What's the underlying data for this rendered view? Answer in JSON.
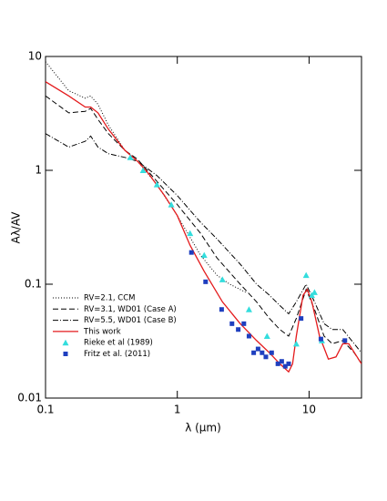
{
  "chart_data": {
    "type": "line",
    "xlabel": "λ (μm)",
    "ylabel": "Aλ/AV",
    "xscale": "log",
    "yscale": "log",
    "xlim": [
      0.1,
      25
    ],
    "ylim": [
      0.01,
      10
    ],
    "xticks": [
      0.1,
      1,
      10
    ],
    "yticks": [
      0.01,
      0.1,
      1,
      10
    ],
    "legend": "lower left",
    "series": [
      {
        "name": "RV=2.1, CCM",
        "color": "#000000",
        "style": "dotted",
        "x": [
          0.1,
          0.15,
          0.2,
          0.22,
          0.25,
          0.3,
          0.4,
          0.5,
          0.7,
          1,
          1.5,
          2,
          2.5,
          3.3
        ],
        "values": [
          9,
          5,
          4.3,
          4.5,
          3.8,
          2.5,
          1.5,
          1.2,
          0.75,
          0.4,
          0.18,
          0.12,
          0.1,
          0.085
        ]
      },
      {
        "name": "RV=3.1, WD01 (Case A)",
        "color": "#000000",
        "style": "dashed",
        "x": [
          0.1,
          0.15,
          0.2,
          0.22,
          0.25,
          0.3,
          0.4,
          0.5,
          0.7,
          1,
          1.5,
          2,
          3,
          4,
          5,
          6,
          7,
          8,
          9.5,
          11,
          13,
          15,
          18,
          22,
          25
        ],
        "values": [
          4.5,
          3.2,
          3.3,
          3.5,
          2.8,
          2.1,
          1.5,
          1.25,
          0.8,
          0.5,
          0.28,
          0.17,
          0.1,
          0.07,
          0.05,
          0.04,
          0.035,
          0.05,
          0.09,
          0.06,
          0.035,
          0.03,
          0.032,
          0.025,
          0.02
        ]
      },
      {
        "name": "RV=5.5, WD01 (Case B)",
        "color": "#000000",
        "style": "dashdot",
        "x": [
          0.1,
          0.15,
          0.2,
          0.22,
          0.25,
          0.3,
          0.4,
          0.5,
          0.7,
          1,
          1.5,
          2,
          3,
          4,
          5,
          6,
          7,
          8,
          9.5,
          11,
          13,
          15,
          18,
          22,
          25
        ],
        "values": [
          2.1,
          1.6,
          1.8,
          2.0,
          1.6,
          1.4,
          1.3,
          1.2,
          0.9,
          0.6,
          0.35,
          0.25,
          0.15,
          0.1,
          0.08,
          0.065,
          0.055,
          0.07,
          0.1,
          0.07,
          0.045,
          0.04,
          0.04,
          0.03,
          0.025
        ]
      },
      {
        "name": "This work",
        "color": "#e41a1c",
        "style": "solid",
        "x": [
          0.1,
          0.15,
          0.2,
          0.22,
          0.25,
          0.3,
          0.4,
          0.5,
          0.6,
          0.8,
          1,
          1.25,
          1.6,
          2.2,
          3,
          4,
          5,
          6,
          7,
          7.5,
          8,
          9,
          9.7,
          10.5,
          12,
          14,
          16,
          18,
          20,
          25
        ],
        "values": [
          6,
          4.5,
          3.6,
          3.6,
          3.2,
          2.3,
          1.5,
          1.2,
          0.95,
          0.6,
          0.4,
          0.22,
          0.13,
          0.07,
          0.045,
          0.032,
          0.025,
          0.02,
          0.017,
          0.02,
          0.035,
          0.08,
          0.09,
          0.07,
          0.035,
          0.022,
          0.023,
          0.03,
          0.03,
          0.02
        ]
      },
      {
        "name": "Rieke et al (1989)",
        "color": "#33dddd",
        "marker": "triangle",
        "x": [
          0.44,
          0.55,
          0.7,
          0.9,
          1.25,
          1.6,
          2.2,
          3.5,
          4.8,
          8,
          9.5,
          10.5,
          11,
          12.5
        ],
        "values": [
          1.3,
          1.0,
          0.75,
          0.5,
          0.28,
          0.18,
          0.11,
          0.06,
          0.035,
          0.03,
          0.12,
          0.08,
          0.085,
          0.032
        ]
      },
      {
        "name": "Fritz et al. (2011)",
        "color": "#1f3fbf",
        "marker": "square",
        "x": [
          1.28,
          1.64,
          2.17,
          2.6,
          2.9,
          3.2,
          3.5,
          3.8,
          4.1,
          4.4,
          4.7,
          5.2,
          5.8,
          6.2,
          6.6,
          7.0,
          8.7,
          12.3,
          18.7
        ],
        "values": [
          0.19,
          0.105,
          0.06,
          0.045,
          0.04,
          0.045,
          0.035,
          0.025,
          0.027,
          0.025,
          0.023,
          0.025,
          0.02,
          0.021,
          0.019,
          0.02,
          0.05,
          0.033,
          0.032
        ]
      }
    ]
  }
}
